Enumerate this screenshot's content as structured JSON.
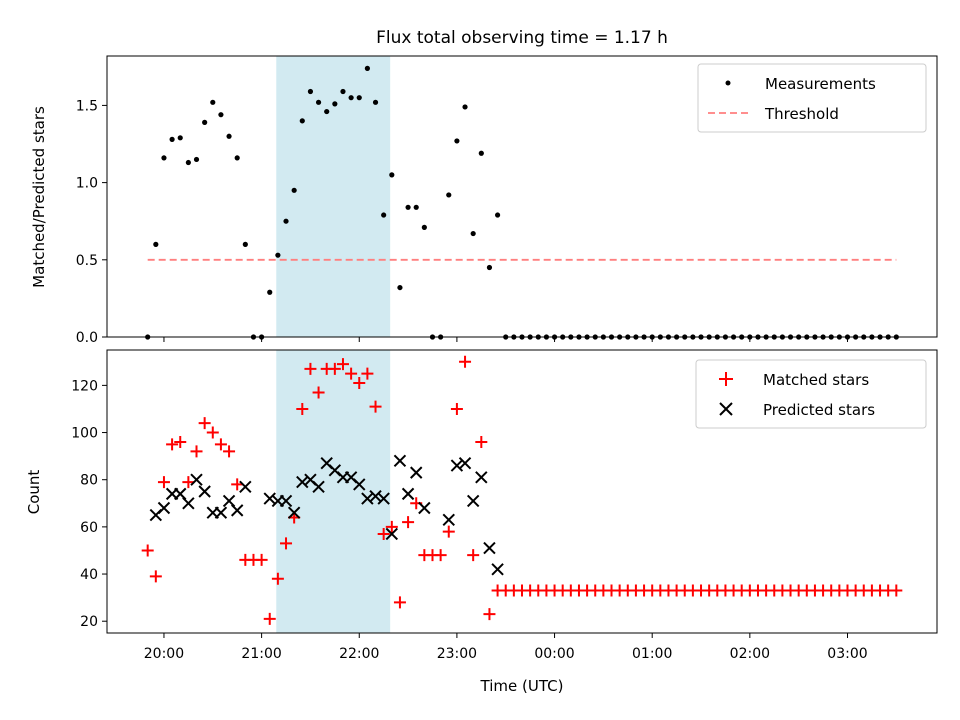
{
  "title": "Flux total observing time = 1.17 h",
  "colors": {
    "highlight": "#add8e6",
    "measurement": "#000000",
    "threshold": "#ff7f7f",
    "matched": "#ff0000",
    "predicted": "#000000"
  },
  "chart_data": [
    {
      "type": "scatter",
      "panel": "top",
      "ylabel": "Matched/Predicted stars",
      "ylim": [
        0,
        1.82
      ],
      "yticks": [
        0.0,
        0.5,
        1.0,
        1.5
      ],
      "ytick_labels": [
        "0.0",
        "0.5",
        "1.0",
        "1.5"
      ],
      "legend_location": "upper right",
      "highlight_span": [
        "21:09",
        "22:19"
      ],
      "series": [
        {
          "name": "Measurements",
          "marker": "dot",
          "points": [
            [
              "19:50",
              0
            ],
            [
              "19:55",
              0.6
            ],
            [
              "20:00",
              1.16
            ],
            [
              "20:05",
              1.28
            ],
            [
              "20:10",
              1.29
            ],
            [
              "20:15",
              1.13
            ],
            [
              "20:20",
              1.15
            ],
            [
              "20:25",
              1.39
            ],
            [
              "20:30",
              1.52
            ],
            [
              "20:35",
              1.44
            ],
            [
              "20:40",
              1.3
            ],
            [
              "20:45",
              1.16
            ],
            [
              "20:50",
              0.6
            ],
            [
              "20:55",
              0
            ],
            [
              "21:00",
              0
            ],
            [
              "21:05",
              0.29
            ],
            [
              "21:10",
              0.53
            ],
            [
              "21:15",
              0.75
            ],
            [
              "21:20",
              0.95
            ],
            [
              "21:25",
              1.4
            ],
            [
              "21:30",
              1.59
            ],
            [
              "21:35",
              1.52
            ],
            [
              "21:40",
              1.46
            ],
            [
              "21:45",
              1.51
            ],
            [
              "21:50",
              1.59
            ],
            [
              "21:55",
              1.55
            ],
            [
              "22:00",
              1.55
            ],
            [
              "22:05",
              1.74
            ],
            [
              "22:10",
              1.52
            ],
            [
              "22:15",
              0.79
            ],
            [
              "22:20",
              1.05
            ],
            [
              "22:25",
              0.32
            ],
            [
              "22:30",
              0.84
            ],
            [
              "22:35",
              0.84
            ],
            [
              "22:40",
              0.71
            ],
            [
              "22:45",
              0
            ],
            [
              "22:50",
              0
            ],
            [
              "22:55",
              0.92
            ],
            [
              "23:00",
              1.27
            ],
            [
              "23:05",
              1.49
            ],
            [
              "23:10",
              0.67
            ],
            [
              "23:15",
              1.19
            ],
            [
              "23:20",
              0.45
            ],
            [
              "23:25",
              0.79
            ],
            [
              "23:30",
              0
            ],
            [
              "23:35",
              0
            ],
            [
              "23:40",
              0
            ],
            [
              "23:45",
              0
            ],
            [
              "23:50",
              0
            ],
            [
              "23:55",
              0
            ],
            [
              "00:00",
              0
            ],
            [
              "00:05",
              0
            ],
            [
              "00:10",
              0
            ],
            [
              "00:15",
              0
            ],
            [
              "00:20",
              0
            ],
            [
              "00:25",
              0
            ],
            [
              "00:30",
              0
            ],
            [
              "00:35",
              0
            ],
            [
              "00:40",
              0
            ],
            [
              "00:45",
              0
            ],
            [
              "00:50",
              0
            ],
            [
              "00:55",
              0
            ],
            [
              "01:00",
              0
            ],
            [
              "01:05",
              0
            ],
            [
              "01:10",
              0
            ],
            [
              "01:15",
              0
            ],
            [
              "01:20",
              0
            ],
            [
              "01:25",
              0
            ],
            [
              "01:30",
              0
            ],
            [
              "01:35",
              0
            ],
            [
              "01:40",
              0
            ],
            [
              "01:45",
              0
            ],
            [
              "01:50",
              0
            ],
            [
              "01:55",
              0
            ],
            [
              "02:00",
              0
            ],
            [
              "02:05",
              0
            ],
            [
              "02:10",
              0
            ],
            [
              "02:15",
              0
            ],
            [
              "02:20",
              0
            ],
            [
              "02:25",
              0
            ],
            [
              "02:30",
              0
            ],
            [
              "02:35",
              0
            ],
            [
              "02:40",
              0
            ],
            [
              "02:45",
              0
            ],
            [
              "02:50",
              0
            ],
            [
              "02:55",
              0
            ],
            [
              "03:00",
              0
            ],
            [
              "03:05",
              0
            ],
            [
              "03:10",
              0
            ],
            [
              "03:15",
              0
            ],
            [
              "03:20",
              0
            ],
            [
              "03:25",
              0
            ],
            [
              "03:30",
              0
            ]
          ]
        },
        {
          "name": "Threshold",
          "style": "dashed-line",
          "points": [
            [
              "19:50",
              0.5
            ],
            [
              "03:30",
              0.5
            ]
          ]
        }
      ]
    },
    {
      "type": "scatter",
      "panel": "bottom",
      "xlabel": "Time (UTC)",
      "ylabel": "Count",
      "ylim": [
        15,
        135
      ],
      "yticks": [
        20,
        40,
        60,
        80,
        100,
        120
      ],
      "xticks": [
        "20:00",
        "21:00",
        "22:00",
        "23:00",
        "00:00",
        "01:00",
        "02:00",
        "03:00"
      ],
      "legend_location": "upper right",
      "highlight_span": [
        "21:09",
        "22:19"
      ],
      "series": [
        {
          "name": "Matched stars",
          "marker": "plus",
          "points": [
            [
              "19:50",
              50
            ],
            [
              "19:55",
              39
            ],
            [
              "20:00",
              79
            ],
            [
              "20:05",
              95
            ],
            [
              "20:10",
              96
            ],
            [
              "20:15",
              79
            ],
            [
              "20:20",
              92
            ],
            [
              "20:25",
              104
            ],
            [
              "20:30",
              100
            ],
            [
              "20:35",
              95
            ],
            [
              "20:40",
              92
            ],
            [
              "20:45",
              78
            ],
            [
              "20:50",
              46
            ],
            [
              "20:55",
              46
            ],
            [
              "21:00",
              46
            ],
            [
              "21:05",
              21
            ],
            [
              "21:10",
              38
            ],
            [
              "21:15",
              53
            ],
            [
              "21:20",
              64
            ],
            [
              "21:25",
              110
            ],
            [
              "21:30",
              127
            ],
            [
              "21:35",
              117
            ],
            [
              "21:40",
              127
            ],
            [
              "21:45",
              127
            ],
            [
              "21:50",
              129
            ],
            [
              "21:55",
              125
            ],
            [
              "22:00",
              121
            ],
            [
              "22:05",
              125
            ],
            [
              "22:10",
              111
            ],
            [
              "22:15",
              57
            ],
            [
              "22:20",
              60
            ],
            [
              "22:25",
              28
            ],
            [
              "22:30",
              62
            ],
            [
              "22:35",
              70
            ],
            [
              "22:40",
              48
            ],
            [
              "22:45",
              48
            ],
            [
              "22:50",
              48
            ],
            [
              "22:55",
              58
            ],
            [
              "23:00",
              110
            ],
            [
              "23:05",
              130
            ],
            [
              "23:10",
              48
            ],
            [
              "23:15",
              96
            ],
            [
              "23:20",
              23
            ],
            [
              "23:25",
              33
            ],
            [
              "23:30",
              33
            ],
            [
              "23:35",
              33
            ],
            [
              "23:40",
              33
            ],
            [
              "23:45",
              33
            ],
            [
              "23:50",
              33
            ],
            [
              "23:55",
              33
            ],
            [
              "00:00",
              33
            ],
            [
              "00:05",
              33
            ],
            [
              "00:10",
              33
            ],
            [
              "00:15",
              33
            ],
            [
              "00:20",
              33
            ],
            [
              "00:25",
              33
            ],
            [
              "00:30",
              33
            ],
            [
              "00:35",
              33
            ],
            [
              "00:40",
              33
            ],
            [
              "00:45",
              33
            ],
            [
              "00:50",
              33
            ],
            [
              "00:55",
              33
            ],
            [
              "01:00",
              33
            ],
            [
              "01:05",
              33
            ],
            [
              "01:10",
              33
            ],
            [
              "01:15",
              33
            ],
            [
              "01:20",
              33
            ],
            [
              "01:25",
              33
            ],
            [
              "01:30",
              33
            ],
            [
              "01:35",
              33
            ],
            [
              "01:40",
              33
            ],
            [
              "01:45",
              33
            ],
            [
              "01:50",
              33
            ],
            [
              "01:55",
              33
            ],
            [
              "02:00",
              33
            ],
            [
              "02:05",
              33
            ],
            [
              "02:10",
              33
            ],
            [
              "02:15",
              33
            ],
            [
              "02:20",
              33
            ],
            [
              "02:25",
              33
            ],
            [
              "02:30",
              33
            ],
            [
              "02:35",
              33
            ],
            [
              "02:40",
              33
            ],
            [
              "02:45",
              33
            ],
            [
              "02:50",
              33
            ],
            [
              "02:55",
              33
            ],
            [
              "03:00",
              33
            ],
            [
              "03:05",
              33
            ],
            [
              "03:10",
              33
            ],
            [
              "03:15",
              33
            ],
            [
              "03:20",
              33
            ],
            [
              "03:25",
              33
            ],
            [
              "03:30",
              33
            ]
          ]
        },
        {
          "name": "Predicted stars",
          "marker": "x",
          "points": [
            [
              "19:55",
              65
            ],
            [
              "20:00",
              68
            ],
            [
              "20:05",
              74
            ],
            [
              "20:10",
              74
            ],
            [
              "20:15",
              70
            ],
            [
              "20:20",
              80
            ],
            [
              "20:25",
              75
            ],
            [
              "20:30",
              66
            ],
            [
              "20:35",
              66
            ],
            [
              "20:40",
              71
            ],
            [
              "20:45",
              67
            ],
            [
              "20:50",
              77
            ],
            [
              "21:05",
              72
            ],
            [
              "21:10",
              71
            ],
            [
              "21:15",
              71
            ],
            [
              "21:20",
              66
            ],
            [
              "21:25",
              79
            ],
            [
              "21:30",
              80
            ],
            [
              "21:35",
              77
            ],
            [
              "21:40",
              87
            ],
            [
              "21:45",
              84
            ],
            [
              "21:50",
              81
            ],
            [
              "21:55",
              81
            ],
            [
              "22:00",
              78
            ],
            [
              "22:05",
              72
            ],
            [
              "22:10",
              73
            ],
            [
              "22:15",
              72
            ],
            [
              "22:20",
              57
            ],
            [
              "22:25",
              88
            ],
            [
              "22:30",
              74
            ],
            [
              "22:35",
              83
            ],
            [
              "22:40",
              68
            ],
            [
              "22:55",
              63
            ],
            [
              "23:00",
              86
            ],
            [
              "23:05",
              87
            ],
            [
              "23:10",
              71
            ],
            [
              "23:15",
              81
            ],
            [
              "23:20",
              51
            ],
            [
              "23:25",
              42
            ]
          ]
        }
      ]
    }
  ]
}
